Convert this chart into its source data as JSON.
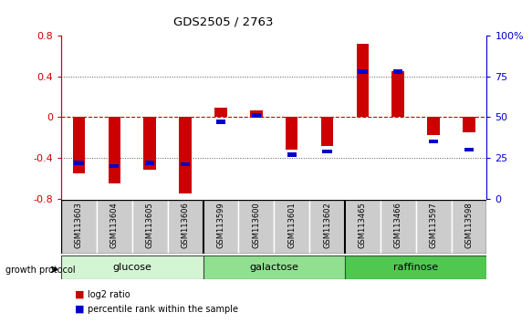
{
  "title": "GDS2505 / 2763",
  "samples": [
    "GSM113603",
    "GSM113604",
    "GSM113605",
    "GSM113606",
    "GSM113599",
    "GSM113600",
    "GSM113601",
    "GSM113602",
    "GSM113465",
    "GSM113466",
    "GSM113597",
    "GSM113598"
  ],
  "log2_ratio": [
    -0.55,
    -0.65,
    -0.52,
    -0.75,
    0.09,
    0.07,
    -0.32,
    -0.28,
    0.72,
    0.45,
    -0.18,
    -0.15
  ],
  "percentile_rank": [
    22,
    20,
    22,
    21,
    47,
    51,
    27,
    29,
    78,
    78,
    35,
    30
  ],
  "groups": [
    {
      "label": "glucose",
      "start": 0,
      "end": 4,
      "color": "#d4f5d4"
    },
    {
      "label": "galactose",
      "start": 4,
      "end": 8,
      "color": "#90e090"
    },
    {
      "label": "raffinose",
      "start": 8,
      "end": 12,
      "color": "#50c850"
    }
  ],
  "ylim": [
    -0.8,
    0.8
  ],
  "y2lim": [
    0,
    100
  ],
  "yticks": [
    -0.8,
    -0.4,
    0.0,
    0.4,
    0.8
  ],
  "y2ticks": [
    0,
    25,
    50,
    75,
    100
  ],
  "bar_color_red": "#cc0000",
  "bar_color_blue": "#0000cc",
  "hline_color": "#cc0000",
  "grid_color": "#555555",
  "bg_color": "#ffffff",
  "bar_width": 0.35,
  "blue_bar_height": 0.04
}
